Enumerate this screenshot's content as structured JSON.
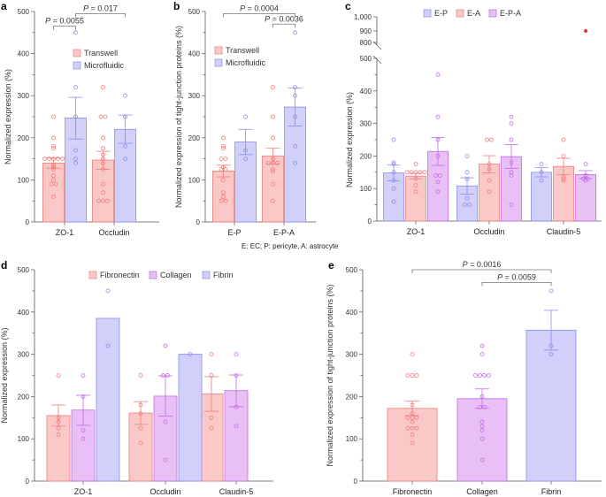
{
  "colors": {
    "Transwell": {
      "fill": "#fbc8c8",
      "stroke": "#f07c7c"
    },
    "Microfluidic": {
      "fill": "#d0d0fa",
      "stroke": "#8c8cf0"
    },
    "E-P": {
      "fill": "#d0d0fa",
      "stroke": "#8c8cf0"
    },
    "E-A": {
      "fill": "#fbc8c8",
      "stroke": "#f07c7c"
    },
    "E-P-A": {
      "fill": "#e8c0f5",
      "stroke": "#c46ae8"
    },
    "Fibronectin": {
      "fill": "#fbc8c8",
      "stroke": "#f07c7c"
    },
    "Collagen": {
      "fill": "#e8c0f5",
      "stroke": "#c46ae8"
    },
    "Fibrin": {
      "fill": "#d0d0fa",
      "stroke": "#8c8cf0"
    },
    "axis": "#555555",
    "bracket": "#777777",
    "outlier": "#e83030"
  },
  "footnote": "E: EC; P: pericyte, A: astrocyte",
  "chart_data": [
    {
      "panel": "a",
      "type": "bar",
      "ylabel": "Normalized expression (%)",
      "ylim": [
        0,
        500
      ],
      "yticks": [
        0,
        100,
        200,
        300,
        400,
        500
      ],
      "categories": [
        "ZO-1",
        "Occludin"
      ],
      "legend": [
        "Transwell",
        "Microfluidic"
      ],
      "legend_position": "top-center",
      "series": [
        {
          "name": "Transwell",
          "values": [
            140,
            147
          ],
          "err": [
            [
              128,
              152
            ],
            [
              125,
              168
            ]
          ],
          "points": [
            [
              250,
              200,
              180,
              175,
              150,
              150,
              150,
              150,
              150,
              135,
              130,
              125,
              110,
              100,
              90,
              90,
              60
            ],
            [
              320,
              250,
              250,
              200,
              175,
              160,
              150,
              140,
              125,
              90,
              70,
              50,
              50,
              50
            ]
          ]
        },
        {
          "name": "Microfluidic",
          "values": [
            247,
            220
          ],
          "err": [
            [
              197,
              296
            ],
            [
              187,
              254
            ]
          ],
          "points": [
            [
              450,
              320,
              250,
              170,
              150,
              140
            ],
            [
              300,
              250,
              180,
              150
            ]
          ]
        }
      ],
      "annotations": [
        {
          "text": "P = 0.0055",
          "from": [
            0,
            0
          ],
          "to": [
            0,
            1
          ],
          "y": 465
        },
        {
          "text": "P = 0.017",
          "from": [
            0,
            1
          ],
          "to": [
            1,
            1
          ],
          "y": 495
        }
      ]
    },
    {
      "panel": "b",
      "type": "bar",
      "ylabel": "Normalized expression of tight-junction proteins (%)",
      "ylim": [
        0,
        500
      ],
      "yticks": [
        0,
        100,
        200,
        300,
        400,
        500
      ],
      "categories": [
        "E-P",
        "E-P-A"
      ],
      "legend": [
        "Transwell",
        "Microfluidic"
      ],
      "legend_position": "top-left",
      "series": [
        {
          "name": "Transwell",
          "values": [
            121,
            157
          ],
          "err": [
            [
              107,
              135
            ],
            [
              138,
              175
            ]
          ],
          "points": [
            [
              200,
              180,
              175,
              150,
              150,
              130,
              125,
              125,
              100,
              70,
              60,
              50,
              50
            ],
            [
              320,
              250,
              200,
              150,
              140,
              140,
              140,
              125,
              120,
              90,
              50
            ]
          ]
        },
        {
          "name": "Microfluidic",
          "values": [
            190,
            273
          ],
          "err": [
            [
              160,
              220
            ],
            [
              228,
              318
            ]
          ],
          "points": [
            [
              250,
              170,
              150
            ],
            [
              450,
              320,
              300,
              250,
              180,
              140
            ]
          ]
        }
      ],
      "annotations": [
        {
          "text": "P = 0.0004",
          "from": [
            0,
            0
          ],
          "to": [
            1,
            1
          ],
          "y": 495
        },
        {
          "text": "P = 0.0036",
          "from": [
            1,
            0
          ],
          "to": [
            1,
            1
          ],
          "y": 470
        }
      ]
    },
    {
      "panel": "c",
      "type": "bar",
      "ylabel": "Normalized expression (%)",
      "ylim": [
        0,
        1000
      ],
      "axis_break": [
        500,
        800
      ],
      "yticks": [
        0,
        100,
        200,
        300,
        400,
        500,
        800,
        900,
        1000
      ],
      "ytick_labels": [
        "0",
        "100",
        "200",
        "300",
        "400",
        "500",
        "800",
        "900",
        "1,000"
      ],
      "categories": [
        "ZO-1",
        "Occludin",
        "Claudin-5"
      ],
      "legend": [
        "E-P",
        "E-A",
        "E-P-A"
      ],
      "legend_position": "top-center",
      "series": [
        {
          "name": "E-P",
          "values": [
            148,
            108,
            150
          ],
          "err": [
            [
              124,
              172
            ],
            [
              83,
              133
            ],
            [
              136,
              164
            ]
          ],
          "points": [
            [
              250,
              180,
              175,
              150,
              125,
              100,
              60
            ],
            [
              200,
              150,
              130,
              70,
              50,
              50
            ],
            [
              175,
              150,
              125
            ]
          ]
        },
        {
          "name": "E-A",
          "values": [
            138,
            175,
            168
          ],
          "err": [
            [
              130,
              147
            ],
            [
              148,
              201
            ],
            [
              143,
              193
            ]
          ],
          "points": [
            [
              175,
              150,
              150,
              150,
              150,
              150,
              130,
              110,
              90
            ],
            [
              250,
              250,
              175,
              160,
              125,
              90
            ],
            [
              250,
              200,
              135,
              130,
              125
            ]
          ]
        },
        {
          "name": "E-P-A",
          "values": [
            214,
            198,
            143
          ],
          "err": [
            [
              171,
              257
            ],
            [
              162,
              235
            ],
            [
              131,
              155
            ]
          ],
          "points": [
            [
              450,
              320,
              250,
              200,
              140,
              140,
              120,
              90
            ],
            [
              320,
              300,
              250,
              180,
              150,
              140,
              50
            ],
            [
              175,
              140,
              130,
              130,
              125
            ]
          ]
        }
      ],
      "outliers": [
        {
          "category": "Claudin-5",
          "value": 900
        }
      ]
    },
    {
      "panel": "d",
      "type": "bar",
      "ylabel": "Normalized expression (%)",
      "ylim": [
        0,
        500
      ],
      "yticks": [
        0,
        100,
        200,
        300,
        400,
        500
      ],
      "categories": [
        "ZO-1",
        "Occludin",
        "Claudin-5"
      ],
      "legend": [
        "Fibronectin",
        "Collagen",
        "Fibrin"
      ],
      "legend_position": "top-center",
      "series": [
        {
          "name": "Fibronectin",
          "values": [
            155,
            161,
            206
          ],
          "err": [
            [
              130,
              180
            ],
            [
              134,
              188
            ],
            [
              165,
              247
            ]
          ],
          "points": [
            [
              250,
              150,
              140,
              125,
              110
            ],
            [
              250,
              180,
              160,
              125,
              90
            ],
            [
              300,
              250,
              150,
              125
            ]
          ]
        },
        {
          "name": "Collagen",
          "values": [
            168,
            201,
            214
          ],
          "err": [
            [
              132,
              203
            ],
            [
              154,
              249
            ],
            [
              176,
              251
            ]
          ],
          "points": [
            [
              250,
              200,
              120,
              100
            ],
            [
              320,
              250,
              250,
              140,
              50
            ],
            [
              300,
              250,
              175,
              130
            ]
          ]
        },
        {
          "name": "Fibrin",
          "values": [
            385,
            300,
            null
          ],
          "err": [
            null,
            null,
            null
          ],
          "points": [
            [
              450,
              320
            ],
            [
              300
            ],
            []
          ]
        }
      ]
    },
    {
      "panel": "e",
      "type": "bar",
      "ylabel": "Normalized expression of tight-junction proteins (%)",
      "ylim": [
        0,
        500
      ],
      "yticks": [
        0,
        100,
        200,
        300,
        400,
        500
      ],
      "categories": [
        "Fibronectin",
        "Collagen",
        "Fibrin"
      ],
      "series": [
        {
          "name": "Fibronectin",
          "values": [
            172
          ],
          "err": [
            [
              155,
              189
            ]
          ],
          "points": [
            [
              300,
              250,
              250,
              250,
              180,
              160,
              150,
              150,
              150,
              140,
              125,
              125,
              125,
              110,
              90
            ]
          ]
        },
        {
          "name": "Collagen",
          "values": [
            195
          ],
          "err": [
            [
              172,
              218
            ]
          ],
          "points": [
            [
              320,
              300,
              250,
              250,
              250,
              250,
              200,
              175,
              175,
              140,
              130,
              120,
              100,
              50
            ]
          ]
        },
        {
          "name": "Fibrin",
          "values": [
            357
          ],
          "err": [
            [
              310,
              404
            ]
          ],
          "points": [
            [
              450,
              320,
              300
            ]
          ]
        }
      ],
      "annotations": [
        {
          "text": "P = 0.0016",
          "from": [
            0,
            0
          ],
          "to": [
            2,
            0
          ],
          "y": 500
        },
        {
          "text": "P = 0.0059",
          "from": [
            1,
            0
          ],
          "to": [
            2,
            0
          ],
          "y": 470
        }
      ]
    }
  ]
}
